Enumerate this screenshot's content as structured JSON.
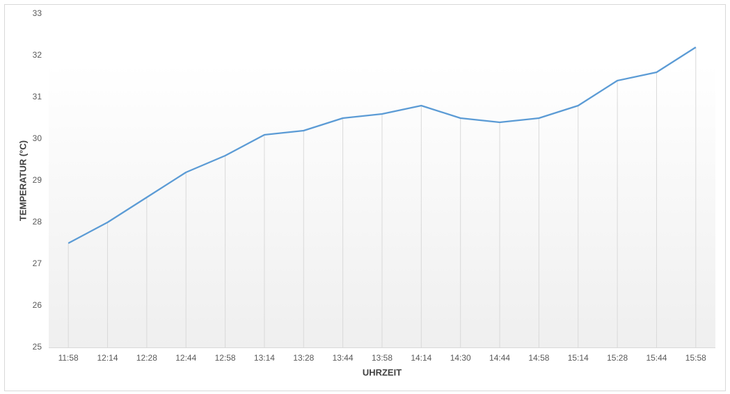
{
  "chart_data": {
    "type": "line",
    "x_label": "UHRZEIT",
    "y_label": "TEMPERATUR (°C)",
    "categories": [
      "11:58",
      "12:14",
      "12:28",
      "12:44",
      "12:58",
      "13:14",
      "13:28",
      "13:44",
      "13:58",
      "14:14",
      "14:30",
      "14:44",
      "14:58",
      "15:14",
      "15:28",
      "15:44",
      "15:58"
    ],
    "series": [
      {
        "name": "Temperatur",
        "color": "#5b9bd5",
        "values": [
          27.5,
          28.0,
          28.6,
          29.2,
          29.6,
          30.1,
          30.2,
          30.5,
          30.6,
          30.8,
          30.5,
          30.4,
          30.5,
          30.8,
          31.4,
          31.6,
          32.2
        ]
      }
    ],
    "ylim": [
      25,
      33
    ],
    "yticks": [
      25,
      26,
      27,
      28,
      29,
      30,
      31,
      32,
      33
    ],
    "drop_lines": true
  }
}
